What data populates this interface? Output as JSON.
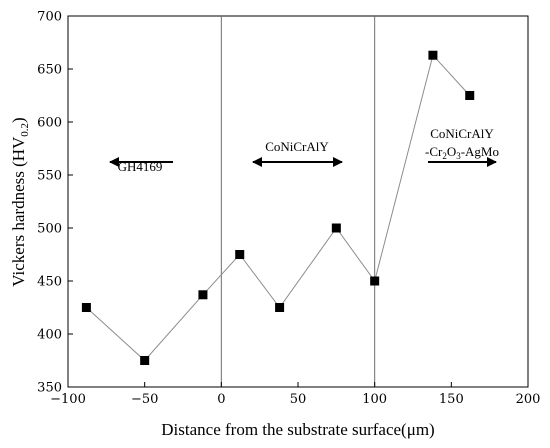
{
  "chart_data": {
    "type": "scatter",
    "title": "",
    "xlabel": "Distance from the substrate surface(μm)",
    "ylabel": "Vickers hardness (HV",
    "ylabel_sub": "0.2",
    "ylabel_close": ")",
    "xlim": [
      -100,
      200
    ],
    "ylim": [
      350,
      700
    ],
    "xticks": [
      "−100",
      "−50",
      "0",
      "50",
      "100",
      "150",
      "200"
    ],
    "yticks": [
      "350",
      "400",
      "450",
      "500",
      "550",
      "600",
      "650",
      "700"
    ],
    "grid": false,
    "boundaries": [
      0,
      100
    ],
    "series": [
      {
        "x": [
          -88,
          -50,
          -12,
          12,
          38,
          75,
          100,
          138,
          162
        ],
        "y": [
          425,
          375,
          437,
          475,
          425,
          500,
          450,
          663,
          625
        ],
        "color": "#000000",
        "line_color": "#8c8c8c",
        "marker": "square"
      }
    ],
    "annotations": [
      {
        "text": "GH4169",
        "region": "substrate",
        "arrow": "left"
      },
      {
        "text": "CoNiCrAlY",
        "region": "bond coat",
        "arrow": "both"
      },
      {
        "text_line1": "CoNiCrAlY",
        "text_line2_a": "-Cr",
        "text_line2_sub1": "2",
        "text_line2_b": "O",
        "text_line2_sub2": "3",
        "text_line2_c": "-AgMo",
        "region": "top coat",
        "arrow": "right"
      }
    ]
  }
}
